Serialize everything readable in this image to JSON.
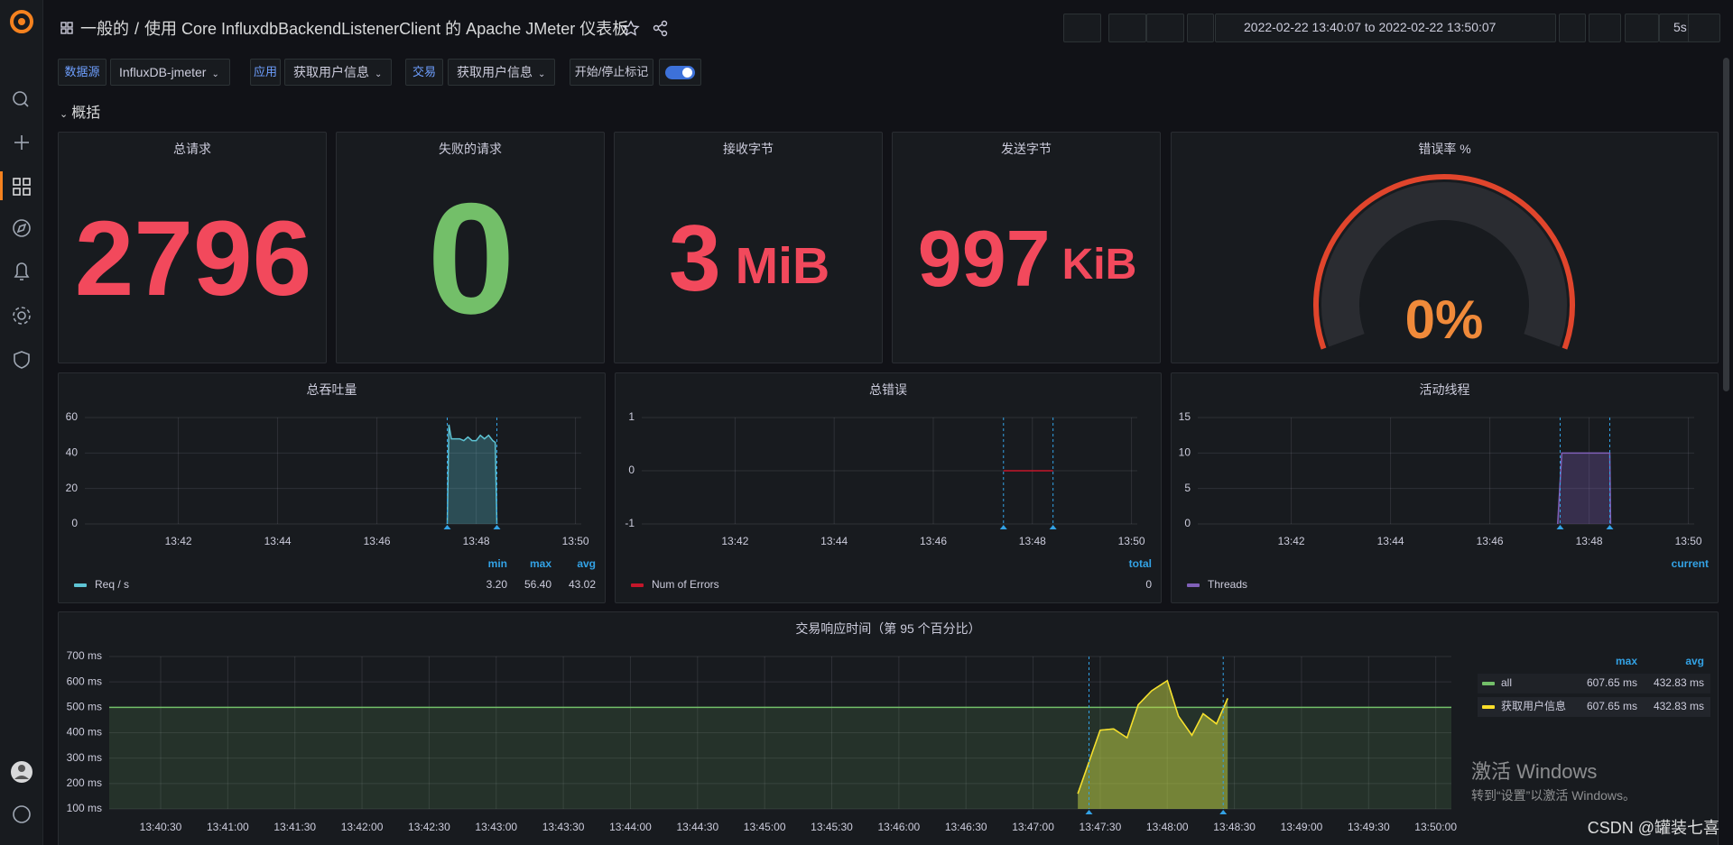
{
  "header": {
    "folder": "一般的",
    "separator": "/",
    "title": "使用 Core InfluxdbBackendListenerClient 的 Apache JMeter 仪表板",
    "time_range": "2022-02-22 13:40:07 to 2022-02-22 13:50:07",
    "refresh": "5s"
  },
  "variables": [
    {
      "label": "数据源",
      "value": "InfluxDB-jmeter"
    },
    {
      "label": "应用",
      "value": "获取用户信息"
    },
    {
      "label": "交易",
      "value": "获取用户信息"
    }
  ],
  "toggle": {
    "label": "开始/停止标记",
    "on": true
  },
  "row_title": "概括",
  "stats": [
    {
      "title": "总请求",
      "value": 2796,
      "color": "#f2495c"
    },
    {
      "title": "失败的请求",
      "value": 0,
      "color": "#73bf69"
    },
    {
      "title": "接收字节",
      "value": 3,
      "unit": "MiB",
      "color": "#f2495c"
    },
    {
      "title": "发送字节",
      "value": 997,
      "unit": "KiB",
      "color": "#f2495c"
    }
  ],
  "gauge": {
    "title": "错误率 %",
    "value": 0,
    "label": "0%",
    "range": [
      0,
      100
    ],
    "color": "#f08a3a",
    "threshold_color": "#e0452c"
  },
  "annotations": {
    "color": "#33a2e5",
    "times": [
      "13:47:25",
      "13:48:25"
    ]
  },
  "charts": [
    {
      "type": "area",
      "title": "总吞吐量",
      "xlim": [
        "13:40:07",
        "13:50:07"
      ],
      "xticks": [
        "13:42",
        "13:44",
        "13:46",
        "13:48",
        "13:50"
      ],
      "ylim": [
        0,
        60
      ],
      "yticks": [
        0,
        20,
        40,
        60
      ],
      "legend_columns": [
        "min",
        "max",
        "avg"
      ],
      "series": [
        {
          "name": "Req / s",
          "color": "#5ec4d4",
          "x": [
            "13:47:25",
            "13:47:27",
            "13:47:30",
            "13:47:35",
            "13:47:40",
            "13:47:45",
            "13:47:50",
            "13:47:55",
            "13:48:00",
            "13:48:05",
            "13:48:10",
            "13:48:15",
            "13:48:20",
            "13:48:23",
            "13:48:25"
          ],
          "values": [
            0,
            56,
            48,
            48,
            48,
            47,
            49,
            47,
            47,
            50,
            48,
            50,
            47,
            46,
            0
          ],
          "legend_values": [
            "3.20",
            "56.40",
            "43.02"
          ]
        }
      ]
    },
    {
      "type": "line",
      "title": "总错误",
      "xlim": [
        "13:40:07",
        "13:50:07"
      ],
      "xticks": [
        "13:42",
        "13:44",
        "13:46",
        "13:48",
        "13:50"
      ],
      "ylim": [
        -1,
        1
      ],
      "yticks": [
        -1,
        0,
        1
      ],
      "legend_columns": [
        "total"
      ],
      "series": [
        {
          "name": "Num of Errors",
          "color": "#c4162a",
          "x": [
            "13:47:25",
            "13:48:25"
          ],
          "values": [
            0,
            0
          ],
          "legend_values": [
            0
          ]
        }
      ]
    },
    {
      "type": "area",
      "title": "活动线程",
      "xlim": [
        "13:40:07",
        "13:50:07"
      ],
      "xticks": [
        "13:42",
        "13:44",
        "13:46",
        "13:48",
        "13:50"
      ],
      "ylim": [
        0,
        15
      ],
      "yticks": [
        0,
        5,
        10,
        15
      ],
      "legend_columns": [
        "current"
      ],
      "series": [
        {
          "name": "Threads",
          "color": "#8060b8",
          "x": [
            "13:47:22",
            "13:47:27",
            "13:48:25",
            "13:48:26"
          ],
          "values": [
            0,
            10,
            10,
            0
          ]
        }
      ]
    },
    {
      "type": "area",
      "title": "交易响应时间（第 95 个百分比）",
      "xlim": [
        "13:40:07",
        "13:50:07"
      ],
      "xticks": [
        "13:40:30",
        "13:41:00",
        "13:41:30",
        "13:42:00",
        "13:42:30",
        "13:43:00",
        "13:43:30",
        "13:44:00",
        "13:44:30",
        "13:45:00",
        "13:45:30",
        "13:46:00",
        "13:46:30",
        "13:47:00",
        "13:47:30",
        "13:48:00",
        "13:48:30",
        "13:49:00",
        "13:49:30",
        "13:50:00"
      ],
      "ylim": [
        100,
        700
      ],
      "yticks": [
        {
          "value": 100,
          "label": "100 ms"
        },
        {
          "value": 200,
          "label": "200 ms"
        },
        {
          "value": 300,
          "label": "300 ms"
        },
        {
          "value": 400,
          "label": "400 ms"
        },
        {
          "value": 500,
          "label": "500 ms"
        },
        {
          "value": 600,
          "label": "600 ms"
        },
        {
          "value": 700,
          "label": "700 ms"
        }
      ],
      "threshold": {
        "value": 500,
        "color": "#73bf69"
      },
      "legend_columns": [
        "max",
        "avg"
      ],
      "series": [
        {
          "name": "all",
          "color": "#73bf69",
          "x": [
            "13:47:20",
            "13:47:30",
            "13:47:36",
            "13:47:42",
            "13:47:47",
            "13:47:53",
            "13:48:00",
            "13:48:05",
            "13:48:11",
            "13:48:16",
            "13:48:22",
            "13:48:27"
          ],
          "values": [
            160,
            410,
            415,
            380,
            510,
            565,
            605,
            465,
            390,
            475,
            435,
            535
          ],
          "legend_values": [
            "607.65 ms",
            "432.83 ms"
          ]
        },
        {
          "name": "获取用户信息",
          "color": "#fade2a",
          "x": [
            "13:47:20",
            "13:47:30",
            "13:47:36",
            "13:47:42",
            "13:47:47",
            "13:47:53",
            "13:48:00",
            "13:48:05",
            "13:48:11",
            "13:48:16",
            "13:48:22",
            "13:48:27"
          ],
          "values": [
            160,
            410,
            415,
            380,
            510,
            565,
            605,
            465,
            390,
            475,
            435,
            535
          ],
          "legend_values": [
            "607.65 ms",
            "432.83 ms"
          ]
        }
      ]
    }
  ],
  "watermark": {
    "title": "激活 Windows",
    "subtitle": "转到“设置”以激活 Windows。"
  },
  "credit": "CSDN @罐装七喜"
}
